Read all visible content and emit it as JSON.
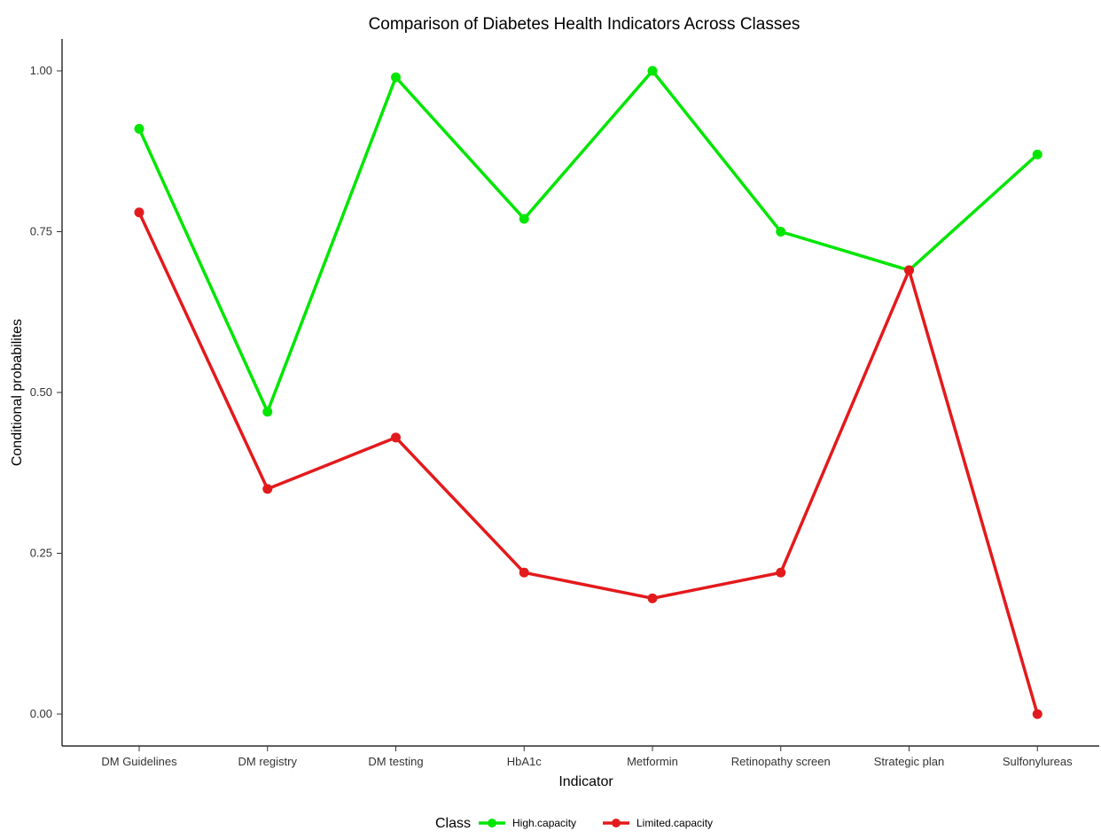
{
  "chart_data": {
    "type": "line",
    "title": "Comparison of Diabetes Health Indicators Across Classes",
    "xlabel": "Indicator",
    "ylabel": "Conditional probabilites",
    "categories": [
      "DM Guidelines",
      "DM registry",
      "DM testing",
      "HbA1c",
      "Metformin",
      "Retinopathy screen",
      "Strategic plan",
      "Sulfonylureas"
    ],
    "ylim": [
      0,
      1
    ],
    "yticks": [
      0.0,
      0.25,
      0.5,
      0.75,
      1.0
    ],
    "ytick_labels": [
      "0.00",
      "0.25",
      "0.50",
      "0.75",
      "1.00"
    ],
    "grid": false,
    "legend": {
      "title": "Class",
      "position": "bottom"
    },
    "series": [
      {
        "name": "High.capacity",
        "color": "#00e600",
        "values": [
          0.91,
          0.47,
          0.99,
          0.77,
          1.0,
          0.75,
          0.69,
          0.87
        ]
      },
      {
        "name": "Limited.capacity",
        "color": "#e31a1c",
        "values": [
          0.78,
          0.35,
          0.43,
          0.22,
          0.18,
          0.22,
          0.69,
          0.0
        ]
      }
    ]
  }
}
